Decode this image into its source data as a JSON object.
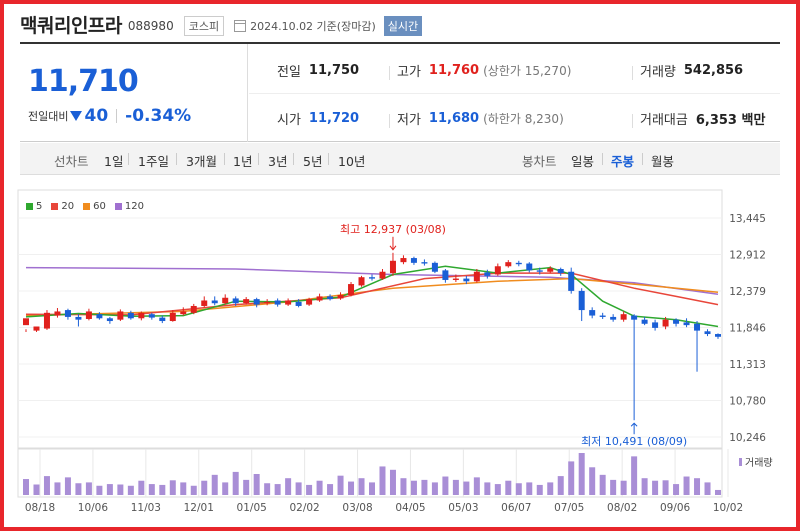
{
  "header": {
    "name": "맥쿼리인프라",
    "code": "088980",
    "market": "코스피",
    "date": "2024.10.02 기준(장마감)",
    "realtime": "실시간"
  },
  "quote": {
    "price": "11,710",
    "change_label": "전일대비",
    "change": "40",
    "change_pct": "-0.34%",
    "prev_label": "전일",
    "prev": "11,750",
    "high_label": "고가",
    "high": "11,760",
    "upper_limit": "(상한가 15,270)",
    "volume_label": "거래량",
    "volume": "542,856",
    "open_label": "시가",
    "open": "11,720",
    "low_label": "저가",
    "low": "11,680",
    "lower_limit": "(하한가 8,230)",
    "value_label": "거래대금",
    "value": "6,353 백만"
  },
  "tabs": {
    "line_label": "선차트",
    "periods": [
      "1일",
      "1주일",
      "3개월",
      "1년",
      "3년",
      "5년",
      "10년"
    ],
    "candle_label": "봉차트",
    "candle": [
      "일봉",
      "주봉",
      "월봉"
    ],
    "active_candle": "주봉"
  },
  "colors": {
    "up": "#e0211d",
    "down": "#1a5fd6",
    "accent_red": "#e8262b",
    "ma5": "#2fa82f",
    "ma20": "#e8463a",
    "ma60": "#f08c1e",
    "ma120": "#a070d0",
    "volume": "#a98ed6"
  },
  "chart_data": {
    "type": "candlestick",
    "ma_legend": [
      "5",
      "20",
      "60",
      "120"
    ],
    "ylim": [
      10246,
      13445
    ],
    "y_ticks": [
      "13,445",
      "12,912",
      "12,379",
      "11,846",
      "11,313",
      "10,780",
      "10,246"
    ],
    "x_ticks": [
      "08/18",
      "10/06",
      "11/03",
      "12/01",
      "01/05",
      "02/02",
      "03/08",
      "04/05",
      "05/03",
      "06/07",
      "07/05",
      "08/02",
      "09/06",
      "10/02"
    ],
    "high_annotation": "최고 12,937 (03/08)",
    "low_annotation": "최저 10,491 (08/09)",
    "volume_label": "거래량",
    "candles": [
      [
        11880,
        11980,
        11820,
        11780
      ],
      [
        11800,
        11860,
        11780,
        11820
      ],
      [
        11830,
        12060,
        12100,
        11810
      ],
      [
        12020,
        12080,
        12130,
        11990
      ],
      [
        12100,
        12000,
        12120,
        11960
      ],
      [
        12000,
        11960,
        12040,
        11860
      ],
      [
        11970,
        12080,
        12120,
        11950
      ],
      [
        12040,
        11980,
        12070,
        11960
      ],
      [
        11980,
        11940,
        12000,
        11900
      ],
      [
        11960,
        12080,
        12110,
        11940
      ],
      [
        12060,
        11980,
        12090,
        11960
      ],
      [
        11980,
        12060,
        12080,
        11950
      ],
      [
        12040,
        11990,
        12060,
        11960
      ],
      [
        11990,
        11940,
        12020,
        11910
      ],
      [
        11940,
        12060,
        12100,
        11930
      ],
      [
        12040,
        12080,
        12140,
        12020
      ],
      [
        12060,
        12160,
        12190,
        12040
      ],
      [
        12160,
        12240,
        12300,
        12140
      ],
      [
        12240,
        12200,
        12300,
        12170
      ],
      [
        12200,
        12280,
        12330,
        12180
      ],
      [
        12270,
        12200,
        12300,
        12160
      ],
      [
        12200,
        12260,
        12290,
        12180
      ],
      [
        12260,
        12180,
        12280,
        12140
      ],
      [
        12200,
        12220,
        12260,
        12170
      ],
      [
        12240,
        12180,
        12270,
        12150
      ],
      [
        12180,
        12240,
        12270,
        12160
      ],
      [
        12220,
        12160,
        12260,
        12140
      ],
      [
        12180,
        12260,
        12280,
        12160
      ],
      [
        12240,
        12300,
        12340,
        12220
      ],
      [
        12300,
        12260,
        12330,
        12240
      ],
      [
        12270,
        12320,
        12360,
        12250
      ],
      [
        12320,
        12480,
        12510,
        12300
      ],
      [
        12460,
        12580,
        12600,
        12440
      ],
      [
        12580,
        12560,
        12620,
        12530
      ],
      [
        12560,
        12660,
        12700,
        12540
      ],
      [
        12640,
        12820,
        12937,
        12600
      ],
      [
        12800,
        12860,
        12900,
        12770
      ],
      [
        12860,
        12790,
        12880,
        12760
      ],
      [
        12800,
        12780,
        12840,
        12750
      ],
      [
        12790,
        12660,
        12810,
        12640
      ],
      [
        12680,
        12540,
        12700,
        12500
      ],
      [
        12540,
        12560,
        12620,
        12510
      ],
      [
        12560,
        12520,
        12600,
        12480
      ],
      [
        12520,
        12660,
        12700,
        12500
      ],
      [
        12650,
        12600,
        12690,
        12560
      ],
      [
        12620,
        12740,
        12780,
        12600
      ],
      [
        12740,
        12800,
        12830,
        12720
      ],
      [
        12790,
        12770,
        12820,
        12740
      ],
      [
        12780,
        12680,
        12800,
        12650
      ],
      [
        12680,
        12660,
        12720,
        12620
      ],
      [
        12660,
        12710,
        12740,
        12640
      ],
      [
        12700,
        12640,
        12720,
        12600
      ],
      [
        12660,
        12380,
        12720,
        12340
      ],
      [
        12380,
        12100,
        12420,
        11940
      ],
      [
        12100,
        12020,
        12140,
        11980
      ],
      [
        12020,
        12000,
        12060,
        11970
      ],
      [
        12000,
        11960,
        12040,
        11930
      ],
      [
        11960,
        12040,
        12080,
        11930
      ],
      [
        12020,
        11960,
        12040,
        10491
      ],
      [
        11960,
        11900,
        12000,
        11880
      ],
      [
        11920,
        11840,
        11960,
        11800
      ],
      [
        11860,
        11960,
        12000,
        11820
      ],
      [
        11960,
        11900,
        11980,
        11860
      ],
      [
        11920,
        11880,
        11980,
        11850
      ],
      [
        11900,
        11800,
        11940,
        11200
      ],
      [
        11790,
        11750,
        11820,
        11720
      ],
      [
        11750,
        11710,
        11760,
        11680
      ]
    ],
    "volumes": [
      0.38,
      0.25,
      0.45,
      0.3,
      0.42,
      0.28,
      0.3,
      0.22,
      0.26,
      0.25,
      0.22,
      0.34,
      0.26,
      0.24,
      0.35,
      0.3,
      0.22,
      0.34,
      0.48,
      0.3,
      0.55,
      0.36,
      0.5,
      0.28,
      0.26,
      0.4,
      0.3,
      0.24,
      0.34,
      0.26,
      0.46,
      0.32,
      0.4,
      0.3,
      0.68,
      0.6,
      0.4,
      0.34,
      0.36,
      0.3,
      0.44,
      0.36,
      0.32,
      0.42,
      0.3,
      0.26,
      0.34,
      0.28,
      0.3,
      0.24,
      0.3,
      0.45,
      0.8,
      1.0,
      0.66,
      0.48,
      0.36,
      0.34,
      0.92,
      0.4,
      0.34,
      0.35,
      0.26,
      0.44,
      0.4,
      0.3,
      0.12
    ],
    "ma_lines": {
      "ma5": [
        [
          0,
          12000
        ],
        [
          5,
          12050
        ],
        [
          10,
          12010
        ],
        [
          15,
          12020
        ],
        [
          20,
          12230
        ],
        [
          25,
          12220
        ],
        [
          30,
          12290
        ],
        [
          35,
          12620
        ],
        [
          40,
          12740
        ],
        [
          45,
          12640
        ],
        [
          50,
          12720
        ],
        [
          52,
          12620
        ],
        [
          55,
          12230
        ],
        [
          58,
          12010
        ],
        [
          62,
          11960
        ],
        [
          66,
          11860
        ]
      ],
      "ma20": [
        [
          0,
          12040
        ],
        [
          10,
          12030
        ],
        [
          20,
          12180
        ],
        [
          30,
          12280
        ],
        [
          38,
          12560
        ],
        [
          45,
          12640
        ],
        [
          52,
          12640
        ],
        [
          58,
          12420
        ],
        [
          62,
          12300
        ],
        [
          66,
          12180
        ]
      ],
      "ma60": [
        [
          0,
          12020
        ],
        [
          15,
          12080
        ],
        [
          25,
          12220
        ],
        [
          35,
          12420
        ],
        [
          45,
          12520
        ],
        [
          52,
          12560
        ],
        [
          60,
          12450
        ],
        [
          66,
          12360
        ]
      ],
      "ma120": [
        [
          0,
          12720
        ],
        [
          20,
          12700
        ],
        [
          35,
          12620
        ],
        [
          50,
          12580
        ],
        [
          58,
          12500
        ],
        [
          66,
          12330
        ]
      ]
    }
  }
}
